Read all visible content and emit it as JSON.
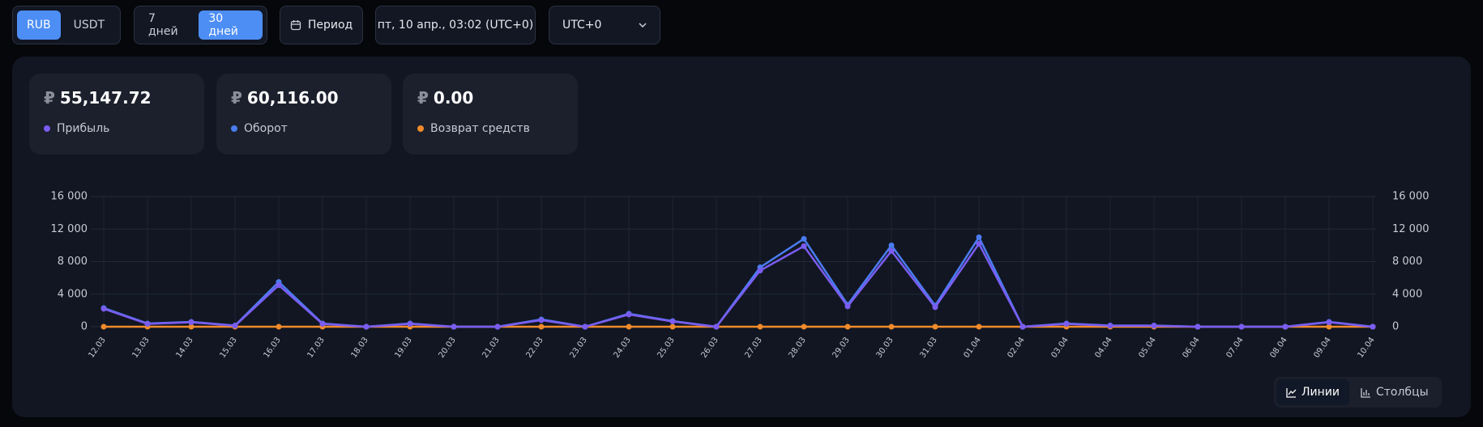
{
  "toolbar": {
    "currency": [
      "RUB",
      "USDT"
    ],
    "range": [
      "7 дней",
      "30 дней"
    ],
    "period": "Период",
    "date": "пт, 10 апр., 03:02 (UTC+0)",
    "timezone": "UTC+0"
  },
  "cards": [
    {
      "currency": "₽",
      "value": "55,147.72"
    },
    {
      "currency": "₽",
      "value": "60,116.00"
    },
    {
      "currency": "₽",
      "value": "0.00"
    }
  ],
  "chart_data": {
    "type": "line",
    "categories": [
      "12.03",
      "13.03",
      "14.03",
      "15.03",
      "16.03",
      "17.03",
      "18.03",
      "19.03",
      "20.03",
      "21.03",
      "22.03",
      "23.03",
      "24.03",
      "25.03",
      "26.03",
      "27.03",
      "28.03",
      "29.03",
      "30.03",
      "31.03",
      "01.04",
      "02.04",
      "03.04",
      "04.04",
      "05.04",
      "06.04",
      "07.04",
      "08.04",
      "09.04",
      "10.04"
    ],
    "series": [
      {
        "name": "Прибыль",
        "color": "#7b5cf0",
        "values": [
          2200,
          350,
          550,
          120,
          5100,
          350,
          0,
          350,
          0,
          0,
          800,
          0,
          1500,
          650,
          0,
          6900,
          9900,
          2500,
          9300,
          2400,
          10200,
          0,
          350,
          120,
          120,
          0,
          0,
          0,
          550,
          0
        ]
      },
      {
        "name": "Оборот",
        "color": "#4a7cf0",
        "values": [
          2300,
          400,
          600,
          150,
          5500,
          400,
          0,
          400,
          0,
          0,
          900,
          0,
          1600,
          700,
          0,
          7300,
          10800,
          2700,
          10000,
          2600,
          11000,
          0,
          400,
          150,
          150,
          0,
          0,
          0,
          600,
          0
        ]
      },
      {
        "name": "Возврат средств",
        "color": "#f08a2a",
        "values": [
          0,
          0,
          0,
          0,
          0,
          0,
          0,
          0,
          0,
          0,
          0,
          0,
          0,
          0,
          0,
          0,
          0,
          0,
          0,
          0,
          0,
          0,
          0,
          0,
          0,
          0,
          0,
          0,
          0,
          0
        ]
      }
    ],
    "ylim": [
      0,
      16000
    ],
    "yticks": [
      0,
      {
        "value": 4000,
        "label": "4 000"
      },
      {
        "value": 8000,
        "label": "8 000"
      },
      {
        "value": 12000,
        "label": "12 000"
      },
      {
        "value": 16000,
        "label": "16 000"
      }
    ],
    "y2lim": [
      0,
      16000
    ],
    "y2ticks": [
      0,
      {
        "value": 4000,
        "label": "4 000"
      },
      {
        "value": 8000,
        "label": "8 000"
      },
      {
        "value": 12000,
        "label": "12 000"
      },
      {
        "value": 16000,
        "label": "16 000"
      }
    ],
    "grid": true
  },
  "view": [
    "Линии",
    "Столбцы"
  ]
}
